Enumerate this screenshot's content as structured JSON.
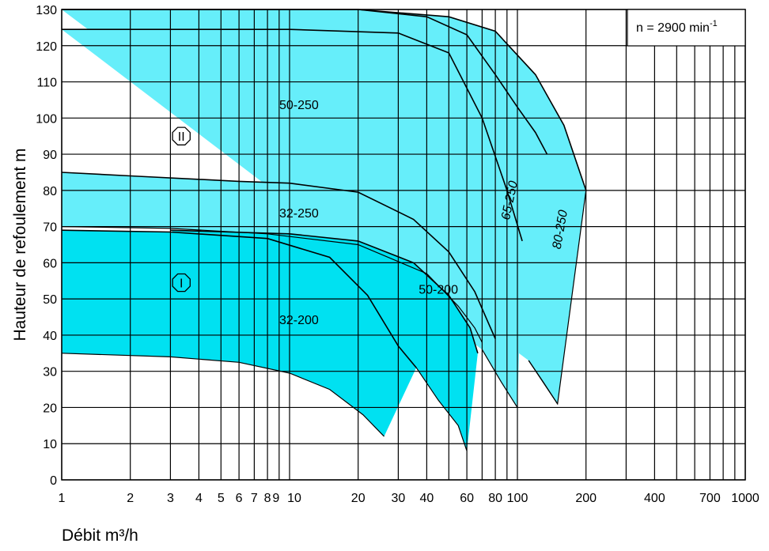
{
  "chart_data": {
    "type": "area",
    "xlabel": "Débit m³/h",
    "ylabel": "Hauteur de refoulement m",
    "x_scale": "log",
    "xlim": [
      1,
      1000
    ],
    "ylim": [
      0,
      130
    ],
    "grid": true,
    "x_tick_labels": [
      "1",
      "2",
      "3",
      "4",
      "5",
      "6",
      "7",
      "8",
      "9",
      "10",
      "20",
      "30",
      "40",
      "60",
      "80",
      "100",
      "200",
      "400",
      "700",
      "1000"
    ],
    "x_tick_values": [
      1,
      2,
      3,
      4,
      5,
      6,
      7,
      8,
      9,
      10,
      20,
      30,
      40,
      60,
      80,
      100,
      200,
      400,
      700,
      1000
    ],
    "x_grid_values": [
      1,
      2,
      3,
      4,
      5,
      6,
      7,
      8,
      9,
      10,
      20,
      30,
      40,
      50,
      60,
      70,
      80,
      90,
      100,
      200,
      300,
      400,
      500,
      600,
      700,
      800,
      900,
      1000
    ],
    "y_ticks": [
      0,
      10,
      20,
      30,
      40,
      50,
      60,
      70,
      80,
      90,
      100,
      110,
      120,
      130
    ],
    "speed_note": {
      "text": "n = 2900 min",
      "superscript": "-1"
    },
    "zone_markers": [
      "II",
      "I"
    ],
    "colors": {
      "zone_I": "#00e1f1",
      "zone_II": "#66eefa",
      "outline": "#000000"
    },
    "series": [
      {
        "name": "32-200",
        "zone": "I",
        "label": "32-200",
        "upper": [
          [
            1,
            69
          ],
          [
            3,
            68.5
          ],
          [
            8,
            66.7
          ],
          [
            15,
            61.5
          ],
          [
            22,
            51
          ],
          [
            30,
            37
          ],
          [
            36,
            31
          ]
        ],
        "lower": [
          [
            1,
            35
          ],
          [
            3,
            34
          ],
          [
            6,
            32.5
          ],
          [
            10,
            29.5
          ],
          [
            15,
            25
          ],
          [
            21,
            18
          ],
          [
            26,
            12
          ]
        ]
      },
      {
        "name": "50-200",
        "zone": "I",
        "label": "50-200",
        "upper": [
          [
            3,
            69
          ],
          [
            10,
            68
          ],
          [
            20,
            66
          ],
          [
            35,
            60
          ],
          [
            50,
            51
          ],
          [
            62,
            42
          ],
          [
            67,
            35
          ]
        ],
        "lower": [
          [
            36,
            31
          ],
          [
            45,
            22
          ],
          [
            55,
            15
          ],
          [
            60,
            8
          ]
        ]
      },
      {
        "name": "32-250",
        "zone": "II",
        "label": "32-250",
        "upper": [
          [
            1,
            85
          ],
          [
            2,
            84
          ],
          [
            6,
            82.5
          ],
          [
            10,
            82
          ],
          [
            20,
            79.5
          ],
          [
            35,
            72
          ],
          [
            50,
            63
          ],
          [
            65,
            52
          ],
          [
            75,
            43
          ],
          [
            80,
            39
          ]
        ],
        "lower": [
          [
            1,
            70
          ],
          [
            3,
            69.5
          ],
          [
            8,
            68
          ],
          [
            20,
            65
          ],
          [
            40,
            57
          ],
          [
            55,
            48
          ],
          [
            65,
            42
          ],
          [
            70,
            38
          ]
        ]
      },
      {
        "name": "50-250",
        "zone": "II",
        "label": "50-250",
        "upper": [
          [
            1,
            124.5
          ],
          [
            10,
            124.5
          ],
          [
            30,
            123.5
          ],
          [
            50,
            118
          ],
          [
            70,
            100
          ],
          [
            90,
            80
          ],
          [
            105,
            66
          ]
        ],
        "lower": [
          [
            70,
            36
          ],
          [
            85,
            27
          ],
          [
            100,
            20
          ]
        ]
      },
      {
        "name": "65-250",
        "zone": "II",
        "label": "65-250",
        "upper": [
          [
            1,
            130
          ],
          [
            20,
            130
          ],
          [
            40,
            128
          ],
          [
            60,
            123
          ],
          [
            80,
            112
          ],
          [
            100,
            103
          ],
          [
            120,
            96
          ],
          [
            135,
            90
          ]
        ],
        "lower": [
          [
            112,
            33
          ],
          [
            130,
            27
          ],
          [
            150,
            21
          ]
        ]
      },
      {
        "name": "80-250",
        "zone": "II",
        "label": "80-250",
        "upper": [
          [
            1,
            130
          ],
          [
            20,
            130
          ],
          [
            50,
            128
          ],
          [
            80,
            124
          ],
          [
            120,
            112
          ],
          [
            160,
            98
          ],
          [
            200,
            80
          ]
        ],
        "lower": [
          [
            112,
            33
          ],
          [
            150,
            21
          ],
          [
            200,
            80
          ]
        ]
      }
    ]
  }
}
